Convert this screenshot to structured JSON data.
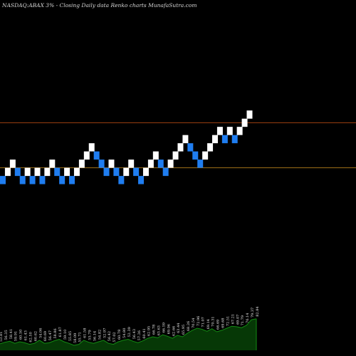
{
  "header": {
    "ticker": "NASDAQ:ABAX",
    "change": "3% -",
    "description": "Closing Daily data Renko charts MunafaSutra.com"
  },
  "colors": {
    "background": "#000000",
    "up_brick": "#ffffff",
    "down_brick": "#1f7df0",
    "upper_line": "#a04010",
    "lower_line": "#a07018",
    "volume_fill": "#063806",
    "volume_line": "#138a13",
    "label_text": "#e8e8e8"
  },
  "chart_data": [
    {
      "type": "renko",
      "title": "NASDAQ:ABAX 3% - Closing Daily data Renko charts MunafaSutra.com",
      "levels": {
        "upper": 69,
        "lower": 63.5
      },
      "brick_size": 1,
      "ylim": [
        40.5,
        84
      ],
      "bricks": [
        {
          "d": "down",
          "v": 62
        },
        {
          "d": "up",
          "v": 63
        },
        {
          "d": "up",
          "v": 64
        },
        {
          "d": "down",
          "v": 63
        },
        {
          "d": "down",
          "v": 62
        },
        {
          "d": "up",
          "v": 63
        },
        {
          "d": "down",
          "v": 62
        },
        {
          "d": "up",
          "v": 63
        },
        {
          "d": "down",
          "v": 62
        },
        {
          "d": "up",
          "v": 63
        },
        {
          "d": "up",
          "v": 64
        },
        {
          "d": "down",
          "v": 63
        },
        {
          "d": "down",
          "v": 62
        },
        {
          "d": "up",
          "v": 63
        },
        {
          "d": "down",
          "v": 62
        },
        {
          "d": "up",
          "v": 63
        },
        {
          "d": "up",
          "v": 64
        },
        {
          "d": "up",
          "v": 65
        },
        {
          "d": "up",
          "v": 66
        },
        {
          "d": "down",
          "v": 65
        },
        {
          "d": "down",
          "v": 64
        },
        {
          "d": "down",
          "v": 63
        },
        {
          "d": "up",
          "v": 64
        },
        {
          "d": "down",
          "v": 63
        },
        {
          "d": "down",
          "v": 62
        },
        {
          "d": "up",
          "v": 63
        },
        {
          "d": "up",
          "v": 64
        },
        {
          "d": "down",
          "v": 63
        },
        {
          "d": "down",
          "v": 62
        },
        {
          "d": "up",
          "v": 63
        },
        {
          "d": "up",
          "v": 64
        },
        {
          "d": "up",
          "v": 65
        },
        {
          "d": "down",
          "v": 64
        },
        {
          "d": "down",
          "v": 63
        },
        {
          "d": "up",
          "v": 64
        },
        {
          "d": "up",
          "v": 65
        },
        {
          "d": "up",
          "v": 66
        },
        {
          "d": "up",
          "v": 67
        },
        {
          "d": "down",
          "v": 66
        },
        {
          "d": "down",
          "v": 65
        },
        {
          "d": "down",
          "v": 64
        },
        {
          "d": "up",
          "v": 65
        },
        {
          "d": "up",
          "v": 66
        },
        {
          "d": "up",
          "v": 67
        },
        {
          "d": "up",
          "v": 68
        },
        {
          "d": "down",
          "v": 67
        },
        {
          "d": "up",
          "v": 68
        },
        {
          "d": "down",
          "v": 67
        },
        {
          "d": "up",
          "v": 68
        },
        {
          "d": "up",
          "v": 69
        },
        {
          "d": "up",
          "v": 70
        }
      ]
    },
    {
      "type": "area",
      "title": "volume",
      "ylim": [
        0,
        100
      ],
      "values": [
        13,
        16,
        18,
        14,
        17,
        15,
        12,
        14,
        20,
        14,
        15,
        19,
        22,
        17,
        14,
        10,
        12,
        20,
        16,
        14,
        17,
        20,
        14,
        12,
        17,
        20,
        22,
        18,
        15,
        19,
        24,
        27,
        25,
        31,
        28,
        24,
        30,
        27,
        34,
        40,
        44,
        42,
        38,
        43,
        37,
        40,
        44,
        48,
        47,
        45,
        50,
        61,
        63
      ],
      "labels": [
        "53.81",
        "56.35",
        "58.41",
        "59.91",
        "60.50",
        "61.43",
        "62.50",
        "60.62",
        "54.06",
        "60.69",
        "56.47",
        "58.86",
        "61.87",
        "59.10",
        "55.85",
        "58.09",
        "55.71",
        "61.58",
        "55.79",
        "56.14",
        "54.82",
        "52.97",
        "56.42",
        "57.02",
        "60.78",
        "54.80",
        "52.39",
        "56.43",
        "57.26",
        "60.41",
        "62.95",
        "66.78",
        "63.63",
        "66.59",
        "69.06",
        "62.66",
        "63.44",
        "65.95",
        "68.26",
        "70.54",
        "72.96",
        "71.07",
        "69.14",
        "70.31",
        "66.69",
        "69.68",
        "72.51",
        "67.21",
        "69.07",
        "71.79",
        "76.14",
        "79.37",
        "82.84"
      ]
    }
  ]
}
